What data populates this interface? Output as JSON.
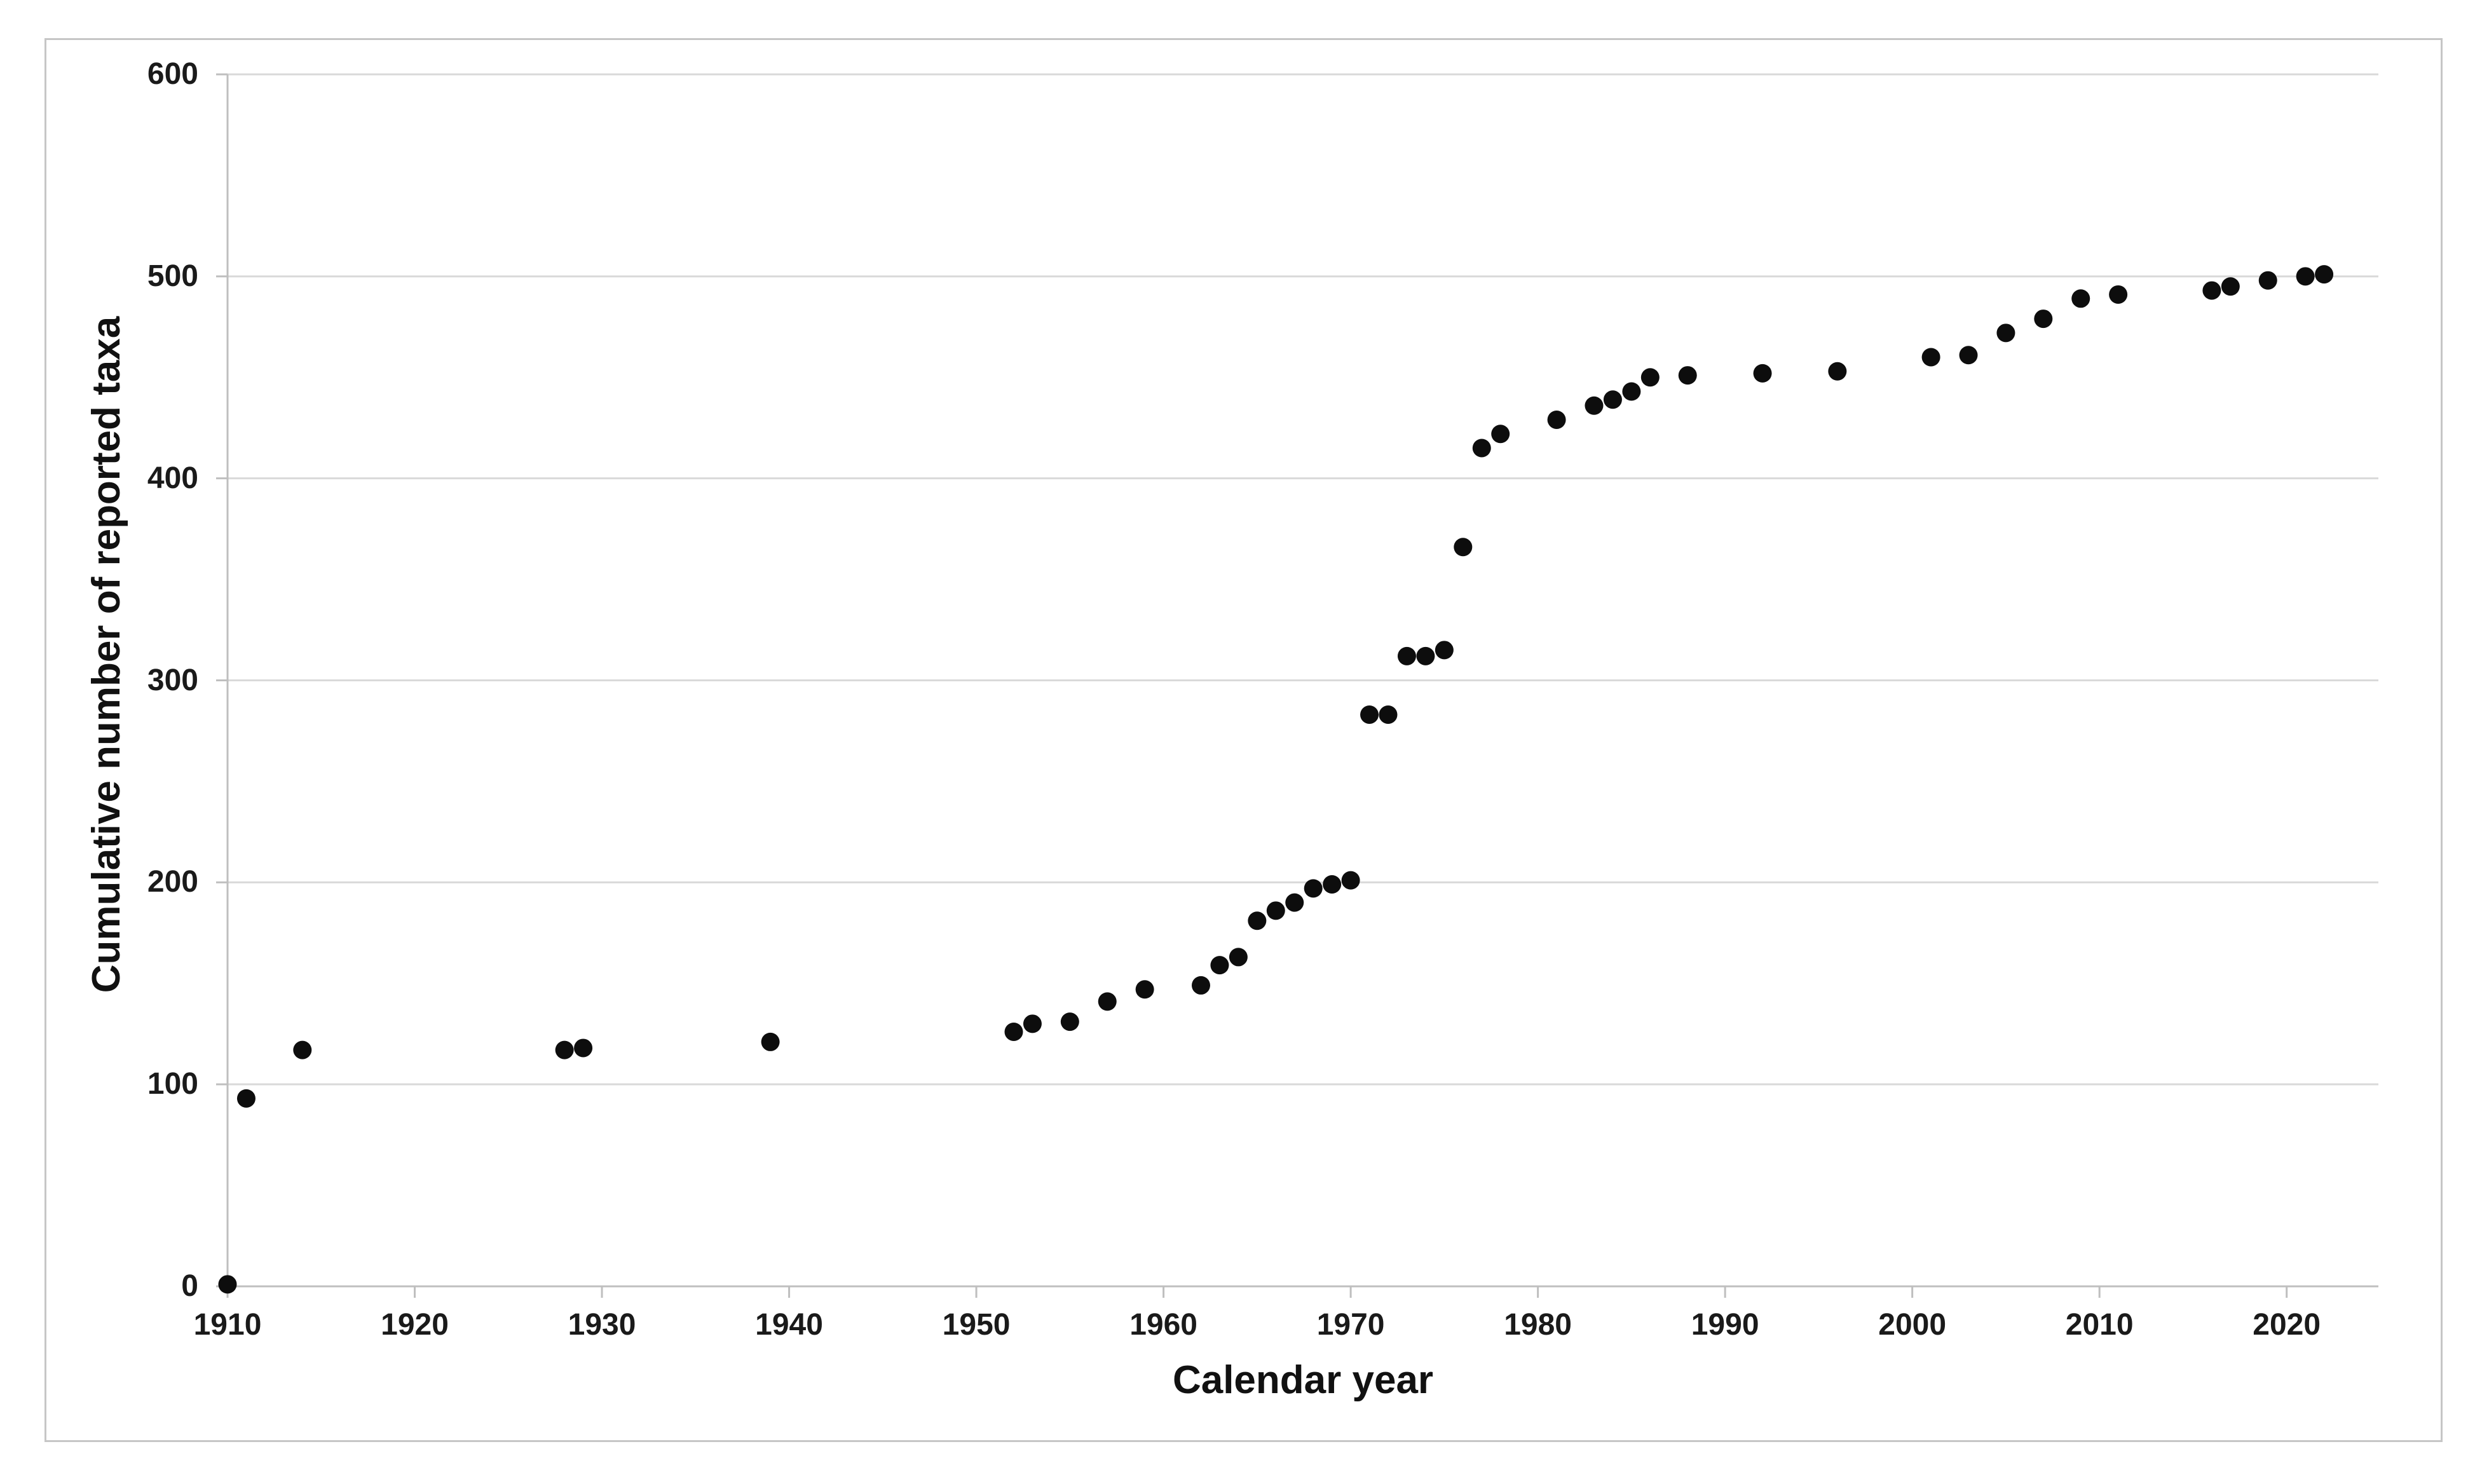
{
  "figure": {
    "background_color": "#ffffff",
    "border_color": "#c6c6c6"
  },
  "chart_data": {
    "type": "scatter",
    "title": "",
    "xlabel": "Calendar year",
    "ylabel": "Cumulative number of reported taxa",
    "x_ticks": [
      1910,
      1920,
      1930,
      1940,
      1950,
      1960,
      1970,
      1980,
      1990,
      2000,
      2010,
      2020
    ],
    "y_ticks": [
      0,
      100,
      200,
      300,
      400,
      500,
      600
    ],
    "xlim": [
      1910,
      2024.9
    ],
    "ylim": [
      0,
      600
    ],
    "grid": "horizontal-only",
    "legend": "none",
    "axis_color": "#bfbfbf",
    "gridline_color": "#d9d9d9",
    "tick_label_color": "#1a1a1a",
    "marker": {
      "shape": "circle",
      "color": "#0d0d0d",
      "radius_px": 14.5
    },
    "points": [
      [
        1910,
        1
      ],
      [
        1911,
        93
      ],
      [
        1914,
        117
      ],
      [
        1928,
        117
      ],
      [
        1929,
        118
      ],
      [
        1939,
        121
      ],
      [
        1952,
        126
      ],
      [
        1953,
        130
      ],
      [
        1955,
        131
      ],
      [
        1957,
        141
      ],
      [
        1959,
        147
      ],
      [
        1962,
        149
      ],
      [
        1963,
        159
      ],
      [
        1964,
        163
      ],
      [
        1965,
        181
      ],
      [
        1966,
        186
      ],
      [
        1967,
        190
      ],
      [
        1968,
        197
      ],
      [
        1969,
        199
      ],
      [
        1970,
        201
      ],
      [
        1971,
        283
      ],
      [
        1972,
        283
      ],
      [
        1973,
        312
      ],
      [
        1974,
        312
      ],
      [
        1975,
        315
      ],
      [
        1976,
        366
      ],
      [
        1977,
        415
      ],
      [
        1978,
        422
      ],
      [
        1981,
        429
      ],
      [
        1983,
        436
      ],
      [
        1984,
        439
      ],
      [
        1985,
        443
      ],
      [
        1986,
        450
      ],
      [
        1988,
        451
      ],
      [
        1992,
        452
      ],
      [
        1996,
        453
      ],
      [
        2001,
        460
      ],
      [
        2003,
        461
      ],
      [
        2005,
        472
      ],
      [
        2007,
        479
      ],
      [
        2009,
        489
      ],
      [
        2011,
        491
      ],
      [
        2016,
        493
      ],
      [
        2017,
        495
      ],
      [
        2019,
        498
      ],
      [
        2021,
        500
      ],
      [
        2022,
        501
      ]
    ]
  }
}
